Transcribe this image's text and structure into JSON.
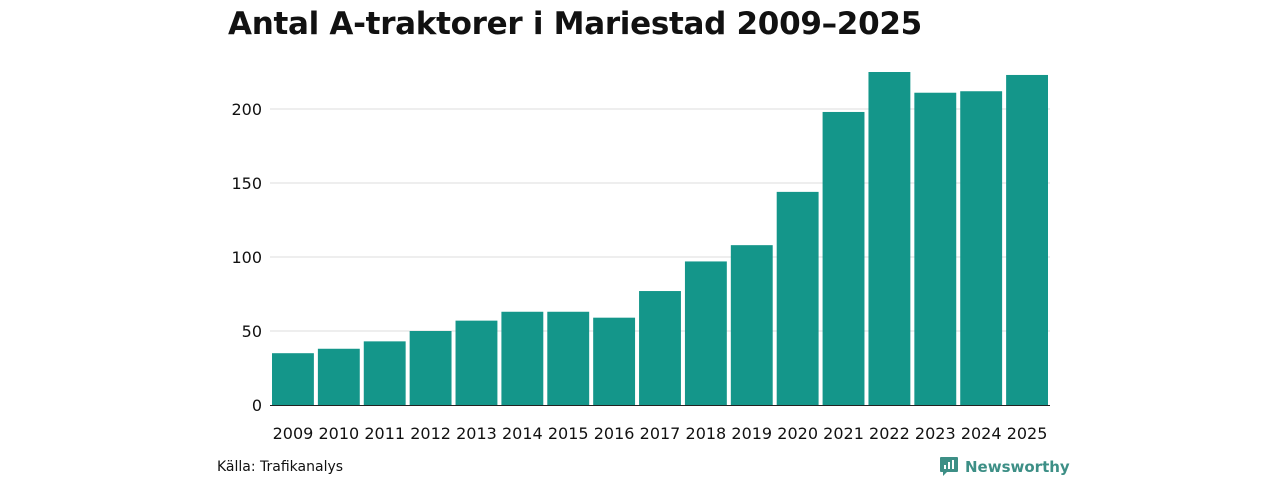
{
  "colors": {
    "bar": "#14968a",
    "grid": "#dcdcdc",
    "axis": "#222222",
    "brand": "#3d8f86"
  },
  "chart_data": {
    "type": "bar",
    "title": "Antal A-traktorer i Mariestad 2009–2025",
    "xlabel": "",
    "ylabel": "",
    "categories": [
      "2009",
      "2010",
      "2011",
      "2012",
      "2013",
      "2014",
      "2015",
      "2016",
      "2017",
      "2018",
      "2019",
      "2020",
      "2021",
      "2022",
      "2023",
      "2024",
      "2025"
    ],
    "values": [
      35,
      38,
      43,
      50,
      57,
      63,
      63,
      59,
      77,
      97,
      108,
      144,
      198,
      225,
      211,
      212,
      223
    ],
    "ylim": [
      0,
      225
    ],
    "yticks": [
      0,
      50,
      100,
      150,
      200
    ],
    "grid": true,
    "legend": "none"
  },
  "footer": {
    "source": "Källa: Trafikanalys",
    "brand": "Newsworthy",
    "brand_icon": "newsworthy-logo-icon"
  }
}
